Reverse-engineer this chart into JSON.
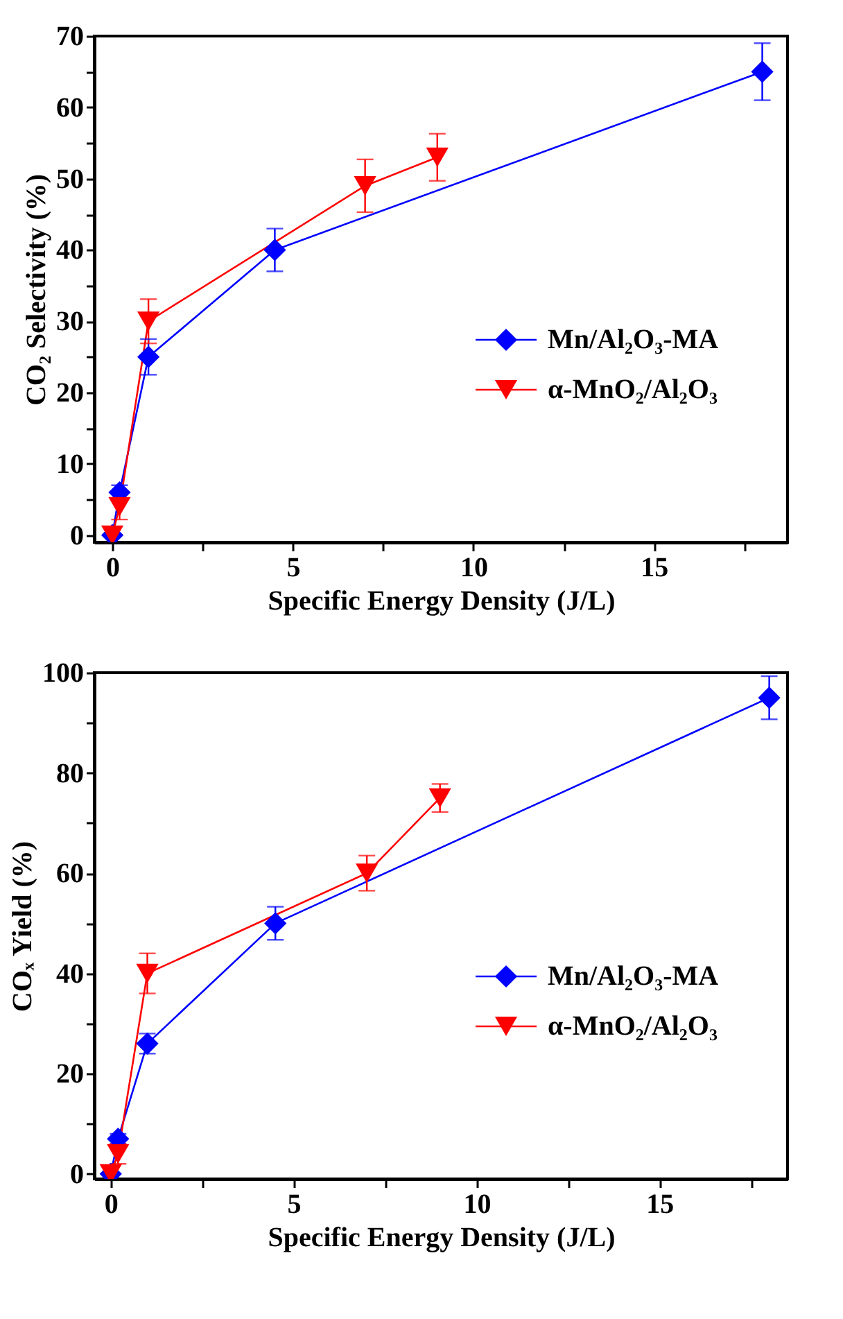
{
  "chart_data": [
    {
      "type": "line",
      "xlabel": "Specific Energy Density (J/L)",
      "ylabel": "CO₂ Selectivity (%)",
      "xlim": [
        -0.5,
        18.7
      ],
      "ylim": [
        -1,
        70
      ],
      "xticks": [
        0,
        {
          "value": 2.5,
          "label": null
        },
        5,
        {
          "value": 7.5,
          "label": null
        },
        10,
        {
          "value": 12.5,
          "label": null
        },
        15,
        {
          "value": 17.5,
          "label": null
        }
      ],
      "yticks": [
        0,
        {
          "value": 5,
          "label": null
        },
        10,
        {
          "value": 15,
          "label": null
        },
        20,
        {
          "value": 25,
          "label": null
        },
        30,
        {
          "value": 35,
          "label": null
        },
        40,
        {
          "value": 45,
          "label": null
        },
        50,
        {
          "value": 55,
          "label": null
        },
        60,
        {
          "value": 65,
          "label": null
        },
        70
      ],
      "grid": false,
      "legend": "right",
      "line_style": "solid",
      "series": [
        {
          "name": "Mn/Al₂O₃-MA",
          "color": "#0000ff",
          "marker": "diamond",
          "x": [
            0,
            0.2,
            1,
            4.5,
            18
          ],
          "values": [
            0,
            6,
            25,
            40,
            65
          ],
          "errors": [
            null,
            1,
            2.5,
            3,
            4
          ]
        },
        {
          "name": "α-MnO₂/Al₂O₃",
          "color": "#ff0000",
          "marker": "triangle",
          "x": [
            0,
            0.2,
            1,
            7,
            9
          ],
          "values": [
            0,
            4,
            30,
            49,
            53
          ],
          "errors": [
            null,
            1.8,
            3.1,
            3.7,
            3.3
          ]
        }
      ]
    },
    {
      "type": "line",
      "xlabel": "Specific Energy Density (J/L)",
      "ylabel": "COₓ Yield (%)",
      "xlim": [
        -0.45,
        18.5
      ],
      "ylim": [
        -1,
        100
      ],
      "xticks": [
        0,
        {
          "value": 2.5,
          "label": null
        },
        5,
        {
          "value": 7.5,
          "label": null
        },
        10,
        {
          "value": 12.5,
          "label": null
        },
        15,
        {
          "value": 17.5,
          "label": null
        }
      ],
      "yticks": [
        0,
        {
          "value": 10,
          "label": null
        },
        20,
        {
          "value": 30,
          "label": null
        },
        40,
        {
          "value": 50,
          "label": null
        },
        60,
        {
          "value": 70,
          "label": null
        },
        80,
        {
          "value": 90,
          "label": null
        },
        100
      ],
      "grid": false,
      "legend": "right",
      "line_style": "solid",
      "series": [
        {
          "name": "Mn/Al₂O₃-MA",
          "color": "#0000ff",
          "marker": "diamond",
          "x": [
            0,
            0.2,
            1,
            4.5,
            18
          ],
          "values": [
            0,
            7,
            26,
            50,
            95
          ],
          "errors": [
            null,
            1,
            2,
            3.3,
            4.3
          ]
        },
        {
          "name": "α-MnO₂/Al₂O₃",
          "color": "#ff0000",
          "marker": "triangle",
          "x": [
            0,
            0.2,
            1,
            7,
            9
          ],
          "values": [
            0,
            4,
            40,
            60,
            75
          ],
          "errors": [
            null,
            2,
            4,
            3.5,
            2.8
          ]
        }
      ]
    }
  ]
}
